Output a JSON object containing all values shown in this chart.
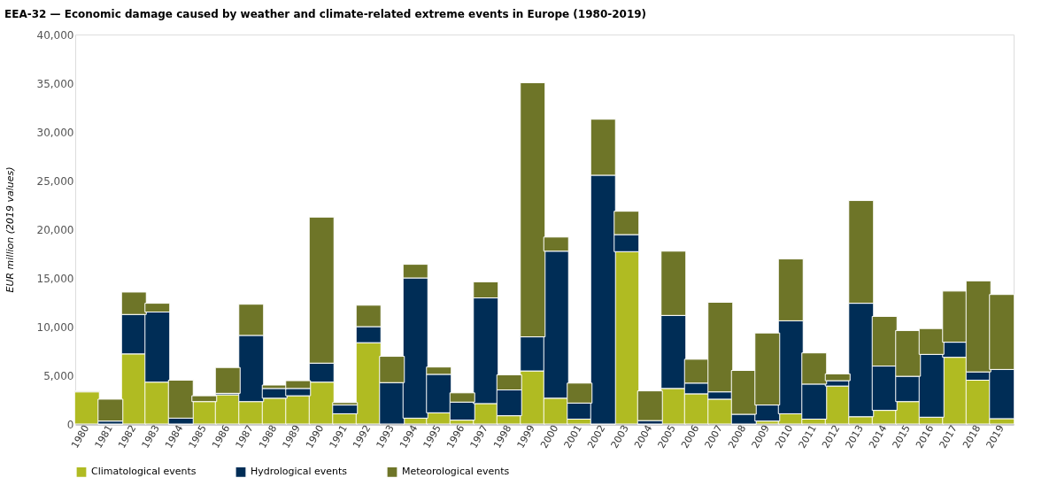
{
  "chart_data": {
    "type": "bar",
    "stacked": true,
    "title": "EEA-32 — Economic damage caused by weather and climate-related extreme events in Europe (1980-2019)",
    "ylabel": "EUR million (2019 values)",
    "categories": [
      "1980",
      "1981",
      "1982",
      "1983",
      "1984",
      "1985",
      "1986",
      "1987",
      "1988",
      "1989",
      "1990",
      "1991",
      "1992",
      "1993",
      "1994",
      "1995",
      "1996",
      "1997",
      "1998",
      "1999",
      "2000",
      "2001",
      "2002",
      "2003",
      "2004",
      "2005",
      "2006",
      "2007",
      "2008",
      "2009",
      "2010",
      "2011",
      "2012",
      "2013",
      "2014",
      "2015",
      "2016",
      "2017",
      "2018",
      "2019"
    ],
    "series": [
      {
        "name": "Climatological events",
        "color": "#b0bb22",
        "values": [
          3300,
          0,
          7200,
          4300,
          0,
          2300,
          3000,
          2300,
          2650,
          2900,
          4300,
          1050,
          8350,
          null,
          600,
          1150,
          400,
          2100,
          850,
          5450,
          2650,
          500,
          0,
          17700,
          0,
          3650,
          3100,
          2550,
          0,
          300,
          1050,
          500,
          3900,
          750,
          1400,
          2300,
          700,
          6850,
          4500,
          550
        ]
      },
      {
        "name": "Hydrological events",
        "color": "#002d56",
        "values": [
          null,
          300,
          4050,
          7200,
          600,
          null,
          150,
          6800,
          1000,
          750,
          1950,
          900,
          1650,
          4250,
          14400,
          3950,
          1850,
          10850,
          2650,
          3500,
          15100,
          1650,
          25550,
          1750,
          350,
          7500,
          1100,
          750,
          1000,
          1650,
          9550,
          3600,
          550,
          11650,
          4550,
          2600,
          6450,
          1550,
          850,
          5050
        ]
      },
      {
        "name": "Meteorological events",
        "color": "#6e7528",
        "values": [
          100,
          2250,
          2300,
          900,
          3900,
          600,
          2650,
          3200,
          350,
          800,
          15000,
          250,
          2200,
          2700,
          1400,
          750,
          950,
          1650,
          1550,
          26100,
          1450,
          2050,
          5750,
          2400,
          3050,
          6600,
          2450,
          9200,
          4500,
          7400,
          6350,
          3200,
          700,
          10550,
          5100,
          4700,
          2650,
          5250,
          9350,
          7700
        ]
      }
    ],
    "ylim": [
      0,
      40000
    ],
    "yticks": [
      {
        "value": 0,
        "label": "0"
      },
      {
        "value": 5000,
        "label": "5,000"
      },
      {
        "value": 10000,
        "label": "10,000"
      },
      {
        "value": 15000,
        "label": "15,000"
      },
      {
        "value": 20000,
        "label": "20,000"
      },
      {
        "value": 25000,
        "label": "25,000"
      },
      {
        "value": 30000,
        "label": "30,000"
      },
      {
        "value": 35000,
        "label": "35,000"
      },
      {
        "value": 40000,
        "label": "40,000"
      }
    ],
    "grid": false,
    "legend": "bottom"
  }
}
